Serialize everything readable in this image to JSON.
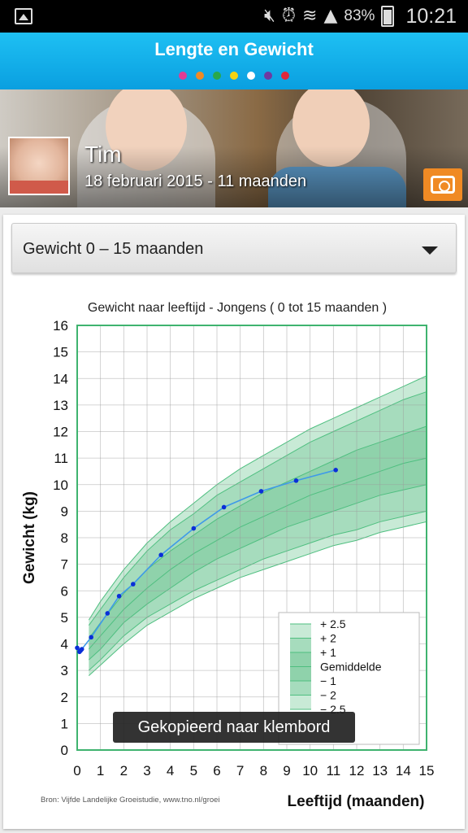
{
  "status_bar": {
    "icons": [
      "image-icon",
      "mute-icon",
      "nfc-icon",
      "alarm-icon",
      "wifi-icon",
      "signal-icon",
      "battery-icon"
    ],
    "battery": "83%",
    "time": "10:21"
  },
  "app": {
    "title": "Lengte en Gewicht",
    "page_dots": [
      "#e23c95",
      "#f08a24",
      "#2aa84a",
      "#f5d311",
      "#ffffff",
      "#6f3aa0",
      "#e0283a"
    ]
  },
  "profile": {
    "name": "Tim",
    "date": "18 februari 2015 - 11 maanden"
  },
  "selector": {
    "value": "Gewicht 0 – 15 maanden"
  },
  "toast": "Gekopieerd naar klembord",
  "chart_data": {
    "type": "line",
    "title": "Gewicht naar leeftijd - Jongens ( 0 tot 15 maanden )",
    "xlabel": "Leeftijd (maanden)",
    "ylabel": "Gewicht (kg)",
    "xlim": [
      0,
      15
    ],
    "ylim": [
      0,
      16
    ],
    "x_ticks": [
      "0",
      "1",
      "2",
      "3",
      "4",
      "5",
      "6",
      "7",
      "8",
      "9",
      "10",
      "11",
      "12",
      "13",
      "14",
      "15"
    ],
    "y_ticks": [
      "0",
      "1",
      "2",
      "3",
      "4",
      "5",
      "6",
      "7",
      "8",
      "9",
      "10",
      "11",
      "12",
      "13",
      "14",
      "15",
      "16"
    ],
    "grid": true,
    "source": "Bron: Vijfde Landelijke Groeistudie, www.tno.nl/groei",
    "legend": {
      "position": "bottom-right",
      "entries": [
        "+ 2.5",
        "+ 2",
        "+ 1",
        "Gemiddelde",
        "− 1",
        "− 2",
        "− 2.5"
      ]
    },
    "reference_bands": {
      "x": [
        0.5,
        1,
        2,
        3,
        4,
        5,
        6,
        7,
        8,
        9,
        10,
        11,
        12,
        13,
        14,
        15
      ],
      "plus_2_5": [
        4.9,
        5.6,
        6.8,
        7.8,
        8.6,
        9.3,
        10.0,
        10.6,
        11.1,
        11.6,
        12.1,
        12.5,
        12.9,
        13.3,
        13.7,
        14.1
      ],
      "plus_2": [
        4.7,
        5.3,
        6.5,
        7.5,
        8.3,
        8.9,
        9.6,
        10.1,
        10.6,
        11.1,
        11.6,
        12.0,
        12.4,
        12.8,
        13.2,
        13.5
      ],
      "plus_1": [
        4.2,
        4.8,
        5.9,
        6.8,
        7.5,
        8.1,
        8.7,
        9.2,
        9.7,
        10.1,
        10.5,
        10.9,
        11.3,
        11.6,
        11.9,
        12.2
      ],
      "mean": [
        3.8,
        4.3,
        5.3,
        6.1,
        6.8,
        7.4,
        7.9,
        8.4,
        8.8,
        9.2,
        9.6,
        9.9,
        10.2,
        10.5,
        10.8,
        11.0
      ],
      "minus_1": [
        3.4,
        3.8,
        4.8,
        5.5,
        6.1,
        6.7,
        7.2,
        7.6,
        8.0,
        8.4,
        8.7,
        9.0,
        9.3,
        9.6,
        9.8,
        10.0
      ],
      "minus_2": [
        3.0,
        3.4,
        4.3,
        5.0,
        5.5,
        6.0,
        6.4,
        6.8,
        7.2,
        7.5,
        7.8,
        8.1,
        8.3,
        8.6,
        8.8,
        9.0
      ],
      "minus_2_5": [
        2.8,
        3.2,
        4.0,
        4.7,
        5.2,
        5.7,
        6.1,
        6.5,
        6.8,
        7.1,
        7.4,
        7.7,
        7.9,
        8.2,
        8.4,
        8.6
      ]
    },
    "series": [
      {
        "x": [
          0,
          0.1,
          0.15,
          0.2,
          0.6,
          1.3,
          1.8,
          2.4,
          3.6,
          5.0,
          6.3,
          7.9,
          9.4,
          11.1
        ],
        "values": [
          3.85,
          3.7,
          3.75,
          3.8,
          4.25,
          5.15,
          5.8,
          6.25,
          7.35,
          8.35,
          9.15,
          9.75,
          10.15,
          10.55
        ]
      }
    ]
  }
}
